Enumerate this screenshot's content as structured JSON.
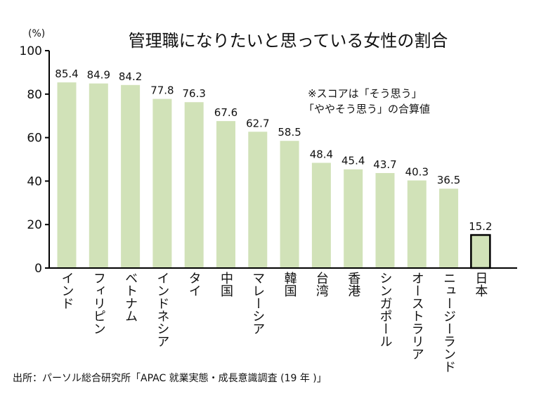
{
  "chart_data": {
    "type": "bar",
    "title": "管理職になりたいと思っている女性の割合",
    "ylabel": "(%)",
    "xlabel": "",
    "ylim": [
      0,
      100
    ],
    "yticks": [
      0,
      20,
      40,
      60,
      80,
      100
    ],
    "grid": false,
    "note_lines": [
      "※スコアは「そう思う」",
      "「ややそう思う」の合算値"
    ],
    "categories": [
      "インド",
      "フィリピン",
      "ベトナム",
      "インドネシア",
      "タイ",
      "中国",
      "マレーシア",
      "韓国",
      "台湾",
      "香港",
      "シンガポール",
      "オーストラリア",
      "ニュージーランド",
      "日本"
    ],
    "values": [
      85.4,
      84.9,
      84.2,
      77.8,
      76.3,
      67.6,
      62.7,
      58.5,
      48.4,
      45.4,
      43.7,
      40.3,
      36.5,
      15.2
    ],
    "value_labels": [
      "85.4",
      "84.9",
      "84.2",
      "77.8",
      "76.3",
      "67.6",
      "62.7",
      "58.5",
      "48.4",
      "45.4",
      "43.7",
      "40.3",
      "36.5",
      "15.2"
    ],
    "highlight_category": "日本",
    "source": "出所：パーソル総合研究所「APAC 就業実態・成長意識調査 (19 年 )」"
  }
}
